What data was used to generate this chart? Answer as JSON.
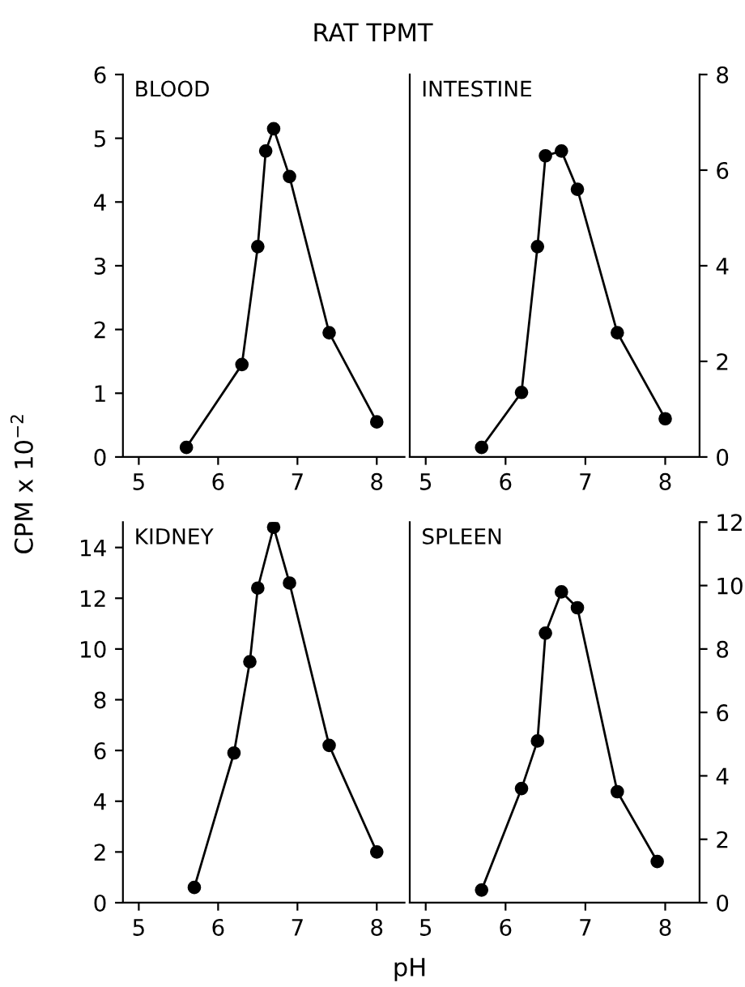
{
  "chart_data": [
    {
      "type": "line",
      "title": "RAT TPMT",
      "ylabel": "CPM x 10$^{−2}$",
      "annotations": [
        "BLOOD"
      ],
      "marker": "circle",
      "line_style": "solid",
      "series": [
        {
          "color": "#000000",
          "x": [
            5.6,
            6.3,
            6.5,
            6.6,
            6.7,
            6.9,
            7.4,
            8.0
          ],
          "values": [
            0.15,
            1.45,
            3.3,
            4.8,
            5.15,
            4.4,
            1.95,
            0.55
          ]
        }
      ],
      "xlim": [
        4.8,
        8.35
      ],
      "xticks": [
        5,
        6,
        7,
        8
      ],
      "ylim": [
        0,
        6
      ],
      "yticks": [
        0,
        1,
        2,
        3,
        4,
        5,
        6
      ]
    },
    {
      "type": "line",
      "annotations": [
        "INTESTINE"
      ],
      "marker": "circle",
      "line_style": "solid",
      "series": [
        {
          "color": "#000000",
          "axis": "y2",
          "x": [
            5.7,
            6.2,
            6.4,
            6.5,
            6.7,
            6.9,
            7.4,
            8.0
          ],
          "values": [
            0.2,
            1.35,
            4.4,
            6.3,
            6.4,
            5.6,
            2.6,
            0.8
          ]
        }
      ],
      "xlim": [
        4.8,
        8.43
      ],
      "xticks": [
        5,
        6,
        7,
        8
      ],
      "y2lim": [
        0,
        8
      ],
      "y2ticks": [
        0,
        2,
        4,
        6,
        8
      ]
    },
    {
      "type": "line",
      "annotations": [
        "KIDNEY"
      ],
      "marker": "circle",
      "line_style": "solid",
      "series": [
        {
          "color": "#000000",
          "x": [
            5.7,
            6.2,
            6.4,
            6.5,
            6.7,
            6.9,
            7.4,
            8.0
          ],
          "values": [
            0.6,
            5.9,
            9.5,
            12.4,
            14.8,
            12.6,
            6.2,
            2.0
          ]
        }
      ],
      "xlim": [
        4.8,
        8.35
      ],
      "xticks": [
        5,
        6,
        7,
        8
      ],
      "ylim": [
        0,
        15
      ],
      "yticks": [
        0,
        2,
        4,
        6,
        8,
        10,
        12,
        14
      ]
    },
    {
      "type": "line",
      "xlabel": "pH",
      "annotations": [
        "SPLEEN"
      ],
      "marker": "circle",
      "line_style": "solid",
      "series": [
        {
          "color": "#000000",
          "axis": "y2",
          "x": [
            5.7,
            6.2,
            6.4,
            6.5,
            6.7,
            6.9,
            7.4,
            7.9
          ],
          "values": [
            0.4,
            3.6,
            5.1,
            8.5,
            9.8,
            9.3,
            3.5,
            1.3
          ]
        }
      ],
      "xlim": [
        4.8,
        8.43
      ],
      "xticks": [
        5,
        6,
        7,
        8
      ],
      "y2lim": [
        0,
        12
      ],
      "y2ticks": [
        0,
        2,
        4,
        6,
        8,
        10,
        12
      ]
    }
  ]
}
